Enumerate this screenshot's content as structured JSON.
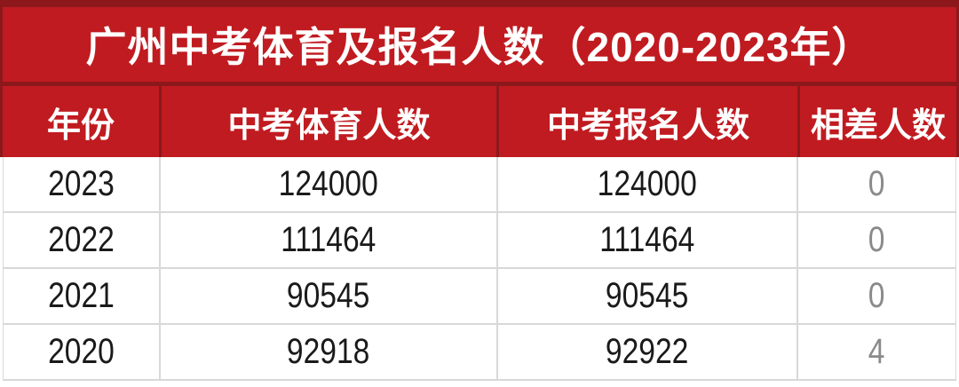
{
  "title": "广州中考体育及报名人数（2020-2023年）",
  "chart_data": {
    "type": "table",
    "title": "广州中考体育及报名人数（2020-2023年）",
    "columns": [
      "年份",
      "中考体育人数",
      "中考报名人数",
      "相差人数"
    ],
    "rows": [
      [
        "2023",
        "124000",
        "124000",
        "0"
      ],
      [
        "2022",
        "111464",
        "111464",
        "0"
      ],
      [
        "2021",
        "90545",
        "90545",
        "0"
      ],
      [
        "2020",
        "92918",
        "92922",
        "4"
      ]
    ]
  },
  "colors": {
    "banner_red": "#C01B20",
    "frame_dark_red": "#8C181C",
    "grid_gray": "#D8D8D8",
    "header_text": "#FFFFFF",
    "body_text": "#1A1A1A",
    "diff_gray": "#8A8A8A"
  }
}
